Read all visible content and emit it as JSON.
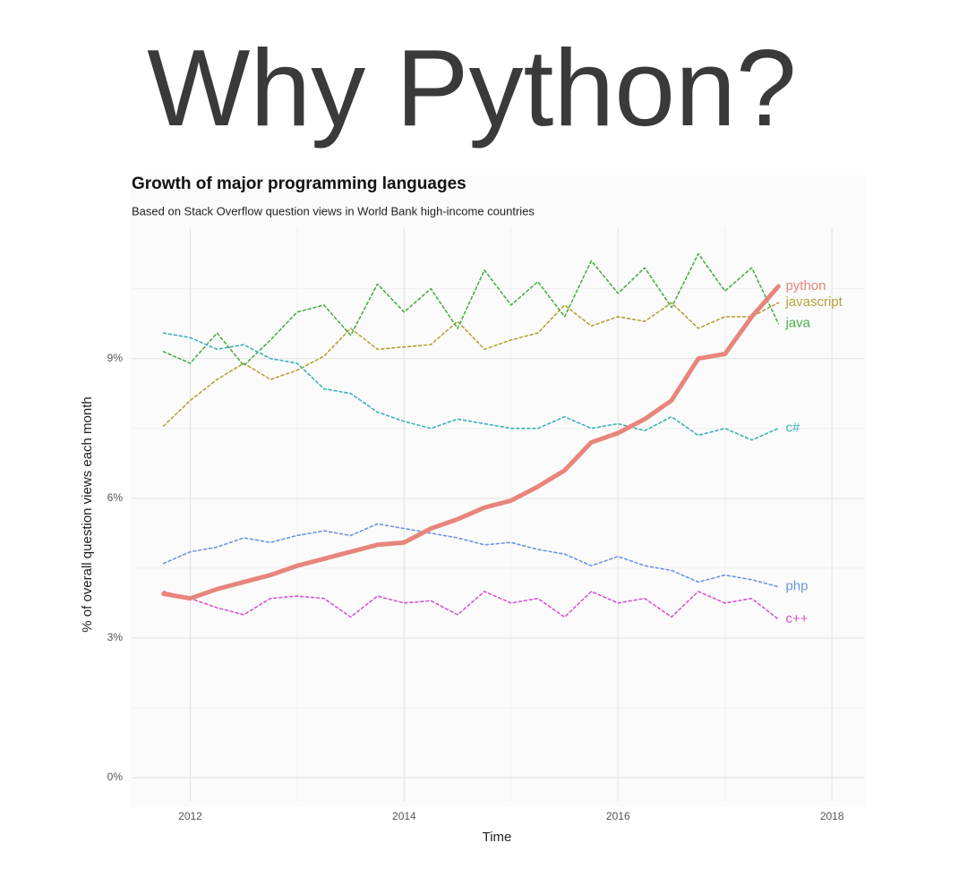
{
  "page": {
    "title": "Why Python?"
  },
  "chart_data": {
    "type": "line",
    "title": "Growth of major programming languages",
    "subtitle": "Based on Stack Overflow question views in World Bank high-income countries",
    "xlabel": "Time",
    "ylabel": "% of overall question views each month",
    "x": [
      2011.75,
      2012.0,
      2012.25,
      2012.5,
      2012.75,
      2013.0,
      2013.25,
      2013.5,
      2013.75,
      2014.0,
      2014.25,
      2014.5,
      2014.75,
      2015.0,
      2015.25,
      2015.5,
      2015.75,
      2016.0,
      2016.25,
      2016.5,
      2016.75,
      2017.0,
      2017.25,
      2017.5
    ],
    "series": [
      {
        "name": "python",
        "color": "#e8857b",
        "dashed": false,
        "values": [
          3.95,
          3.85,
          4.05,
          4.2,
          4.35,
          4.55,
          4.7,
          4.85,
          5.0,
          5.05,
          5.35,
          5.55,
          5.8,
          5.95,
          6.25,
          6.6,
          7.2,
          7.4,
          7.7,
          8.1,
          9.0,
          9.1,
          9.9,
          10.55
        ]
      },
      {
        "name": "javascript",
        "color": "#b3a436",
        "dashed": true,
        "values": [
          7.55,
          8.1,
          8.55,
          8.9,
          8.55,
          8.75,
          9.05,
          9.65,
          9.2,
          9.25,
          9.3,
          9.8,
          9.2,
          9.4,
          9.55,
          10.15,
          9.7,
          9.9,
          9.8,
          10.2,
          9.65,
          9.9,
          9.9,
          10.2
        ]
      },
      {
        "name": "java",
        "color": "#4cae4c",
        "dashed": true,
        "values": [
          9.15,
          8.9,
          9.55,
          8.85,
          9.4,
          10.0,
          10.15,
          9.5,
          10.6,
          10.0,
          10.5,
          9.65,
          10.9,
          10.15,
          10.65,
          9.9,
          11.1,
          10.4,
          10.95,
          10.1,
          11.25,
          10.45,
          10.95,
          9.75
        ]
      },
      {
        "name": "c#",
        "color": "#3cb2b6",
        "dashed": true,
        "values": [
          9.55,
          9.45,
          9.2,
          9.3,
          9.0,
          8.9,
          8.35,
          8.25,
          7.85,
          7.65,
          7.5,
          7.7,
          7.6,
          7.5,
          7.5,
          7.75,
          7.5,
          7.6,
          7.45,
          7.75,
          7.35,
          7.5,
          7.25,
          7.5
        ]
      },
      {
        "name": "php",
        "color": "#6c94e0",
        "dashed": true,
        "values": [
          4.6,
          4.85,
          4.95,
          5.15,
          5.05,
          5.2,
          5.3,
          5.2,
          5.45,
          5.35,
          5.25,
          5.15,
          5.0,
          5.05,
          4.9,
          4.8,
          4.55,
          4.75,
          4.55,
          4.45,
          4.2,
          4.35,
          4.25,
          4.1
        ]
      },
      {
        "name": "c++",
        "color": "#d656d4",
        "dashed": true,
        "values": [
          4.0,
          3.85,
          3.65,
          3.5,
          3.85,
          3.9,
          3.85,
          3.45,
          3.9,
          3.75,
          3.8,
          3.5,
          4.0,
          3.75,
          3.85,
          3.45,
          4.0,
          3.75,
          3.85,
          3.45,
          4.0,
          3.75,
          3.85,
          3.4
        ]
      }
    ],
    "xlim": [
      2011.46,
      2018.3
    ],
    "ylim": [
      -0.5,
      11.8
    ],
    "xticks": [
      2012,
      2014,
      2016,
      2018
    ],
    "yticks": [
      {
        "value": 0,
        "label": "0%"
      },
      {
        "value": 3,
        "label": "3%"
      },
      {
        "value": 6,
        "label": "6%"
      },
      {
        "value": 9,
        "label": "9%"
      }
    ],
    "xminor": [
      2013,
      2015,
      2017
    ],
    "yminor": [
      1.5,
      4.5,
      7.5,
      10.5
    ],
    "grid": true
  }
}
